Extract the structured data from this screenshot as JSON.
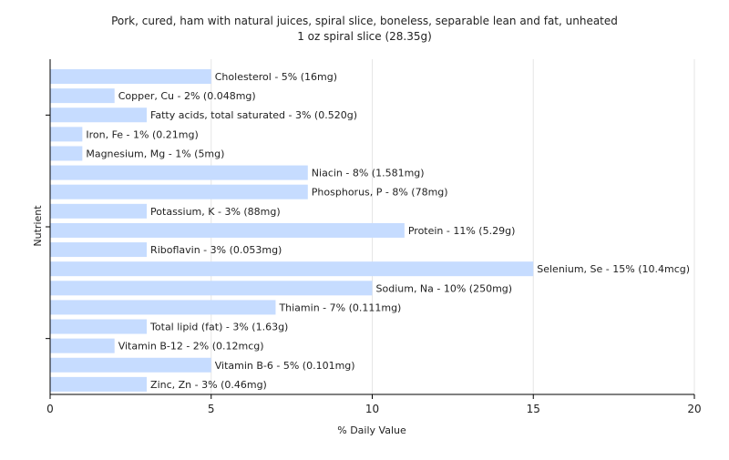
{
  "chart_data": {
    "type": "bar",
    "orientation": "horizontal",
    "title": "Pork, cured, ham with natural juices, spiral slice, boneless, separable lean and fat, unheated",
    "subtitle": "1 oz spiral slice (28.35g)",
    "xlabel": "% Daily Value",
    "ylabel": "Nutrient",
    "xlim": [
      0,
      20
    ],
    "xticks": [
      0,
      5,
      10,
      15,
      20
    ],
    "grid": true,
    "legend": "none",
    "bar_color": "#c6dcff",
    "categories": [
      "Cholesterol",
      "Copper, Cu",
      "Fatty acids, total saturated",
      "Iron, Fe",
      "Magnesium, Mg",
      "Niacin",
      "Phosphorus, P",
      "Potassium, K",
      "Protein",
      "Riboflavin",
      "Selenium, Se",
      "Sodium, Na",
      "Thiamin",
      "Total lipid (fat)",
      "Vitamin B-12",
      "Vitamin B-6",
      "Zinc, Zn"
    ],
    "values": [
      5,
      2,
      3,
      1,
      1,
      8,
      8,
      3,
      11,
      3,
      15,
      10,
      7,
      3,
      2,
      5,
      3
    ],
    "labels": [
      "Cholesterol - 5% (16mg)",
      "Copper, Cu - 2% (0.048mg)",
      "Fatty acids, total saturated - 3% (0.520g)",
      "Iron, Fe - 1% (0.21mg)",
      "Magnesium, Mg - 1% (5mg)",
      "Niacin - 8% (1.581mg)",
      "Phosphorus, P - 8% (78mg)",
      "Potassium, K - 3% (88mg)",
      "Protein - 11% (5.29g)",
      "Riboflavin - 3% (0.053mg)",
      "Selenium, Se - 15% (10.4mcg)",
      "Sodium, Na - 10% (250mg)",
      "Thiamin - 7% (0.111mg)",
      "Total lipid (fat) - 3% (1.63g)",
      "Vitamin B-12 - 2% (0.12mcg)",
      "Vitamin B-6 - 5% (0.101mg)",
      "Zinc, Zn - 3% (0.46mg)"
    ]
  }
}
